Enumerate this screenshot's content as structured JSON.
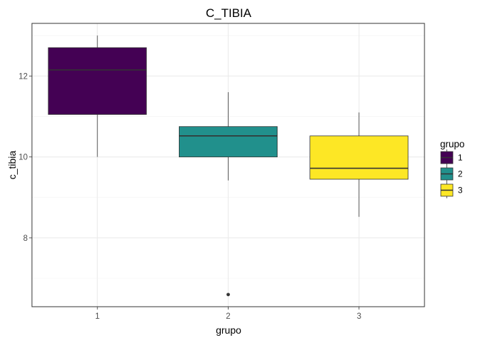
{
  "chart_data": {
    "type": "boxplot",
    "title": "C_TIBIA",
    "xlabel": "grupo",
    "ylabel": "c_tibia",
    "categories": [
      "1",
      "2",
      "3"
    ],
    "ylim": [
      6.3,
      13.3
    ],
    "yticks": [
      8,
      10,
      12
    ],
    "grid": true,
    "legend": {
      "title": "grupo",
      "position": "right",
      "entries": [
        "1",
        "2",
        "3"
      ]
    },
    "colors": [
      "#440154",
      "#21908C",
      "#FDE725"
    ],
    "boxes": [
      {
        "group": "1",
        "whisker_low": 10.0,
        "q1": 11.05,
        "median": 12.15,
        "q3": 12.7,
        "whisker_high": 13.0,
        "outliers": []
      },
      {
        "group": "2",
        "whisker_low": 9.42,
        "q1": 10.0,
        "median": 10.52,
        "q3": 10.75,
        "whisker_high": 11.6,
        "outliers": [
          6.6
        ]
      },
      {
        "group": "3",
        "whisker_low": 8.52,
        "q1": 9.45,
        "median": 9.72,
        "q3": 10.52,
        "whisker_high": 11.1,
        "outliers": []
      }
    ]
  }
}
